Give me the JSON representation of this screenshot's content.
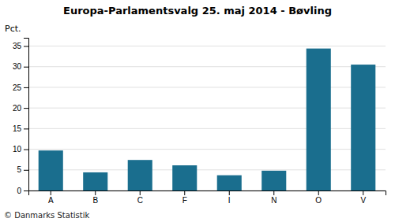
{
  "chart_data": {
    "type": "bar",
    "title": "Europa-Parlamentsvalg 25. maj 2014 - Bøvling",
    "categories": [
      "A",
      "B",
      "C",
      "F",
      "I",
      "N",
      "O",
      "V"
    ],
    "values": [
      9.7,
      4.4,
      7.4,
      6.1,
      3.7,
      4.8,
      34.4,
      30.5
    ],
    "color": "#1a6e8e",
    "ylabel": "Pct.",
    "ylim": [
      0,
      37
    ],
    "yticks": [
      0,
      5,
      10,
      15,
      20,
      25,
      30,
      35
    ],
    "grid": true,
    "footer": "© Danmarks Statistik"
  }
}
